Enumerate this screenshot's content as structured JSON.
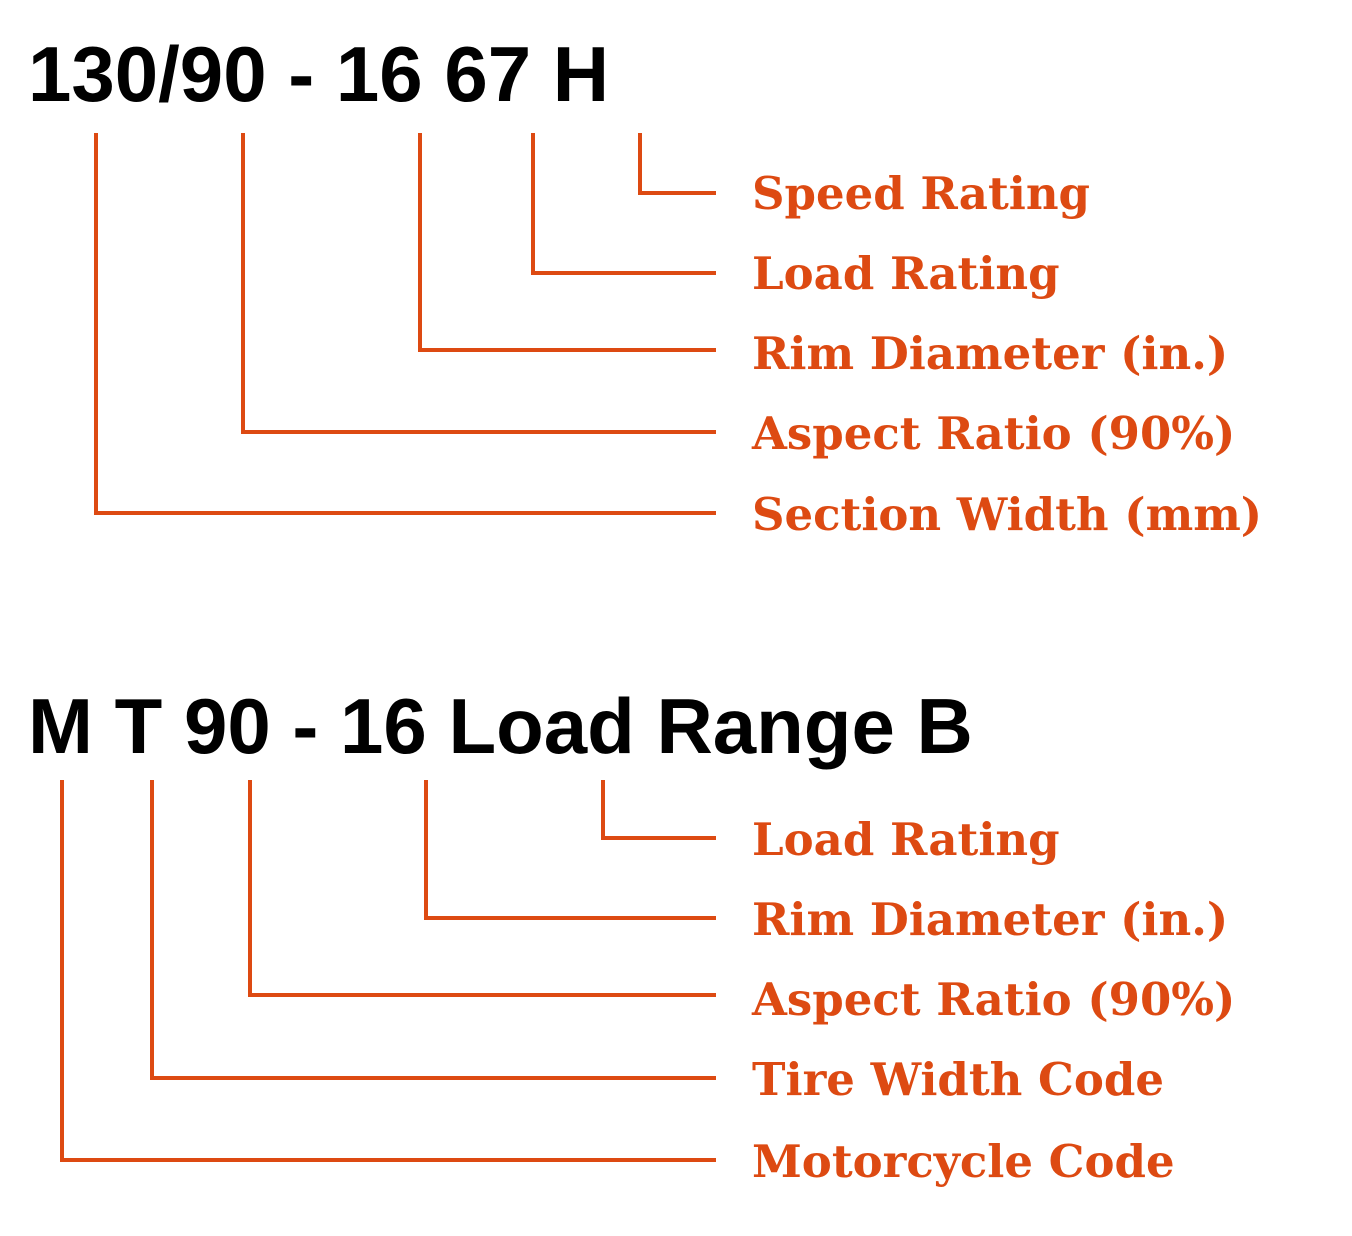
{
  "accent_color": "#dd4a12",
  "top": {
    "code": "130/90 - 16 67 H",
    "labels": [
      "Speed Rating",
      "Load Rating",
      "Rim Diameter (in.)",
      "Aspect Ratio (90%)",
      "Section Width (mm)"
    ]
  },
  "bottom": {
    "code": "M T 90 - 16 Load Range B",
    "labels": [
      "Load Rating",
      "Rim Diameter (in.)",
      "Aspect Ratio (90%)",
      "Tire Width Code",
      "Motorcycle Code"
    ]
  }
}
